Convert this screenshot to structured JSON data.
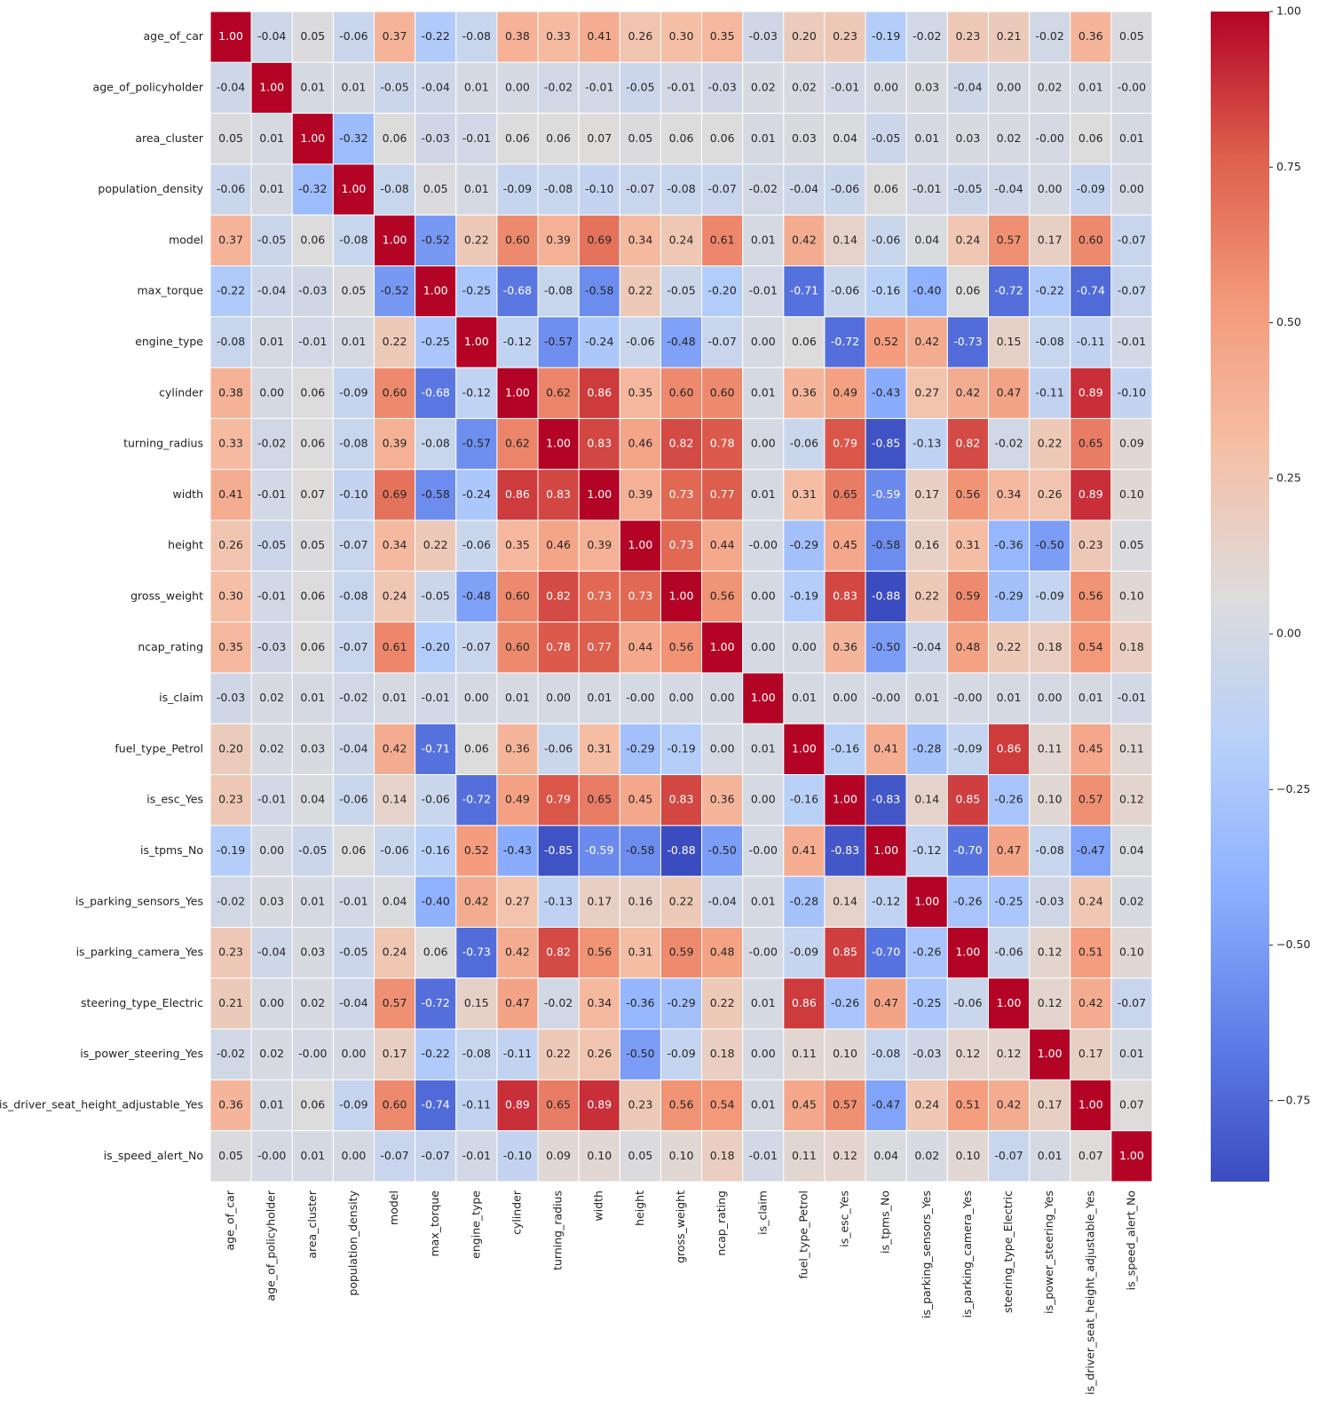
{
  "chart_data": {
    "type": "heatmap",
    "categories": [
      "age_of_car",
      "age_of_policyholder",
      "area_cluster",
      "population_density",
      "model",
      "max_torque",
      "engine_type",
      "cylinder",
      "turning_radius",
      "width",
      "height",
      "gross_weight",
      "ncap_rating",
      "is_claim",
      "fuel_type_Petrol",
      "is_esc_Yes",
      "is_tpms_No",
      "is_parking_sensors_Yes",
      "is_parking_camera_Yes",
      "steering_type_Electric",
      "is_power_steering_Yes",
      "is_driver_seat_height_adjustable_Yes",
      "is_speed_alert_No"
    ],
    "values": [
      [
        1.0,
        -0.04,
        0.05,
        -0.06,
        0.37,
        -0.22,
        -0.08,
        0.38,
        0.33,
        0.41,
        0.26,
        0.3,
        0.35,
        -0.03,
        0.2,
        0.23,
        -0.19,
        -0.02,
        0.23,
        0.21,
        -0.02,
        0.36,
        0.05
      ],
      [
        -0.04,
        1.0,
        0.01,
        0.01,
        -0.05,
        -0.04,
        0.01,
        0.0,
        -0.02,
        -0.01,
        -0.05,
        -0.01,
        -0.03,
        0.02,
        0.02,
        -0.01,
        0.0,
        0.03,
        -0.04,
        0.0,
        0.02,
        0.01,
        -0.0
      ],
      [
        0.05,
        0.01,
        1.0,
        -0.32,
        0.06,
        -0.03,
        -0.01,
        0.06,
        0.06,
        0.07,
        0.05,
        0.06,
        0.06,
        0.01,
        0.03,
        0.04,
        -0.05,
        0.01,
        0.03,
        0.02,
        -0.0,
        0.06,
        0.01
      ],
      [
        -0.06,
        0.01,
        -0.32,
        1.0,
        -0.08,
        0.05,
        0.01,
        -0.09,
        -0.08,
        -0.1,
        -0.07,
        -0.08,
        -0.07,
        -0.02,
        -0.04,
        -0.06,
        0.06,
        -0.01,
        -0.05,
        -0.04,
        0.0,
        -0.09,
        0.0
      ],
      [
        0.37,
        -0.05,
        0.06,
        -0.08,
        1.0,
        -0.52,
        0.22,
        0.6,
        0.39,
        0.69,
        0.34,
        0.24,
        0.61,
        0.01,
        0.42,
        0.14,
        -0.06,
        0.04,
        0.24,
        0.57,
        0.17,
        0.6,
        -0.07
      ],
      [
        -0.22,
        -0.04,
        -0.03,
        0.05,
        -0.52,
        1.0,
        -0.25,
        -0.68,
        -0.08,
        -0.58,
        0.22,
        -0.05,
        -0.2,
        -0.01,
        -0.71,
        -0.06,
        -0.16,
        -0.4,
        0.06,
        -0.72,
        -0.22,
        -0.74,
        -0.07
      ],
      [
        -0.08,
        0.01,
        -0.01,
        0.01,
        0.22,
        -0.25,
        1.0,
        -0.12,
        -0.57,
        -0.24,
        -0.06,
        -0.48,
        -0.07,
        0.0,
        0.06,
        -0.72,
        0.52,
        0.42,
        -0.73,
        0.15,
        -0.08,
        -0.11,
        -0.01
      ],
      [
        0.38,
        0.0,
        0.06,
        -0.09,
        0.6,
        -0.68,
        -0.12,
        1.0,
        0.62,
        0.86,
        0.35,
        0.6,
        0.6,
        0.01,
        0.36,
        0.49,
        -0.43,
        0.27,
        0.42,
        0.47,
        -0.11,
        0.89,
        -0.1
      ],
      [
        0.33,
        -0.02,
        0.06,
        -0.08,
        0.39,
        -0.08,
        -0.57,
        0.62,
        1.0,
        0.83,
        0.46,
        0.82,
        0.78,
        0.0,
        -0.06,
        0.79,
        -0.85,
        -0.13,
        0.82,
        -0.02,
        0.22,
        0.65,
        0.09
      ],
      [
        0.41,
        -0.01,
        0.07,
        -0.1,
        0.69,
        -0.58,
        -0.24,
        0.86,
        0.83,
        1.0,
        0.39,
        0.73,
        0.77,
        0.01,
        0.31,
        0.65,
        -0.59,
        0.17,
        0.56,
        0.34,
        0.26,
        0.89,
        0.1
      ],
      [
        0.26,
        -0.05,
        0.05,
        -0.07,
        0.34,
        0.22,
        -0.06,
        0.35,
        0.46,
        0.39,
        1.0,
        0.73,
        0.44,
        -0.0,
        -0.29,
        0.45,
        -0.58,
        0.16,
        0.31,
        -0.36,
        -0.5,
        0.23,
        0.05
      ],
      [
        0.3,
        -0.01,
        0.06,
        -0.08,
        0.24,
        -0.05,
        -0.48,
        0.6,
        0.82,
        0.73,
        0.73,
        1.0,
        0.56,
        0.0,
        -0.19,
        0.83,
        -0.88,
        0.22,
        0.59,
        -0.29,
        -0.09,
        0.56,
        0.1
      ],
      [
        0.35,
        -0.03,
        0.06,
        -0.07,
        0.61,
        -0.2,
        -0.07,
        0.6,
        0.78,
        0.77,
        0.44,
        0.56,
        1.0,
        0.0,
        0.0,
        0.36,
        -0.5,
        -0.04,
        0.48,
        0.22,
        0.18,
        0.54,
        0.18
      ],
      [
        -0.03,
        0.02,
        0.01,
        -0.02,
        0.01,
        -0.01,
        0.0,
        0.01,
        0.0,
        0.01,
        -0.0,
        0.0,
        0.0,
        1.0,
        0.01,
        0.0,
        -0.0,
        0.01,
        -0.0,
        0.01,
        0.0,
        0.01,
        -0.01
      ],
      [
        0.2,
        0.02,
        0.03,
        -0.04,
        0.42,
        -0.71,
        0.06,
        0.36,
        -0.06,
        0.31,
        -0.29,
        -0.19,
        0.0,
        0.01,
        1.0,
        -0.16,
        0.41,
        -0.28,
        -0.09,
        0.86,
        0.11,
        0.45,
        0.11
      ],
      [
        0.23,
        -0.01,
        0.04,
        -0.06,
        0.14,
        -0.06,
        -0.72,
        0.49,
        0.79,
        0.65,
        0.45,
        0.83,
        0.36,
        0.0,
        -0.16,
        1.0,
        -0.83,
        0.14,
        0.85,
        -0.26,
        0.1,
        0.57,
        0.12
      ],
      [
        -0.19,
        0.0,
        -0.05,
        0.06,
        -0.06,
        -0.16,
        0.52,
        -0.43,
        -0.85,
        -0.59,
        -0.58,
        -0.88,
        -0.5,
        -0.0,
        0.41,
        -0.83,
        1.0,
        -0.12,
        -0.7,
        0.47,
        -0.08,
        -0.47,
        0.04
      ],
      [
        -0.02,
        0.03,
        0.01,
        -0.01,
        0.04,
        -0.4,
        0.42,
        0.27,
        -0.13,
        0.17,
        0.16,
        0.22,
        -0.04,
        0.01,
        -0.28,
        0.14,
        -0.12,
        1.0,
        -0.26,
        -0.25,
        -0.03,
        0.24,
        0.02
      ],
      [
        0.23,
        -0.04,
        0.03,
        -0.05,
        0.24,
        0.06,
        -0.73,
        0.42,
        0.82,
        0.56,
        0.31,
        0.59,
        0.48,
        -0.0,
        -0.09,
        0.85,
        -0.7,
        -0.26,
        1.0,
        -0.06,
        0.12,
        0.51,
        0.1
      ],
      [
        0.21,
        0.0,
        0.02,
        -0.04,
        0.57,
        -0.72,
        0.15,
        0.47,
        -0.02,
        0.34,
        -0.36,
        -0.29,
        0.22,
        0.01,
        0.86,
        -0.26,
        0.47,
        -0.25,
        -0.06,
        1.0,
        0.12,
        0.42,
        -0.07
      ],
      [
        -0.02,
        0.02,
        -0.0,
        0.0,
        0.17,
        -0.22,
        -0.08,
        -0.11,
        0.22,
        0.26,
        -0.5,
        -0.09,
        0.18,
        0.0,
        0.11,
        0.1,
        -0.08,
        -0.03,
        0.12,
        0.12,
        1.0,
        0.17,
        0.01
      ],
      [
        0.36,
        0.01,
        0.06,
        -0.09,
        0.6,
        -0.74,
        -0.11,
        0.89,
        0.65,
        0.89,
        0.23,
        0.56,
        0.54,
        0.01,
        0.45,
        0.57,
        -0.47,
        0.24,
        0.51,
        0.42,
        0.17,
        1.0,
        0.07
      ],
      [
        0.05,
        -0.0,
        0.01,
        0.0,
        -0.07,
        -0.07,
        -0.01,
        -0.1,
        0.09,
        0.1,
        0.05,
        0.1,
        0.18,
        -0.01,
        0.11,
        0.12,
        0.04,
        0.02,
        0.1,
        -0.07,
        0.01,
        0.07,
        1.0
      ]
    ],
    "value_labels": [
      [
        "1.00",
        "-0.04",
        "0.05",
        "-0.06",
        "0.37",
        "-0.22",
        "-0.08",
        "0.38",
        "0.33",
        "0.41",
        "0.26",
        "0.30",
        "0.35",
        "-0.03",
        "0.20",
        "0.23",
        "-0.19",
        "-0.02",
        "0.23",
        "0.21",
        "-0.02",
        "0.36",
        "0.05"
      ],
      [
        "-0.04",
        "1.00",
        "0.01",
        "0.01",
        "-0.05",
        "-0.04",
        "0.01",
        "0.00",
        "-0.02",
        "-0.01",
        "-0.05",
        "-0.01",
        "-0.03",
        "0.02",
        "0.02",
        "-0.01",
        "0.00",
        "0.03",
        "-0.04",
        "0.00",
        "0.02",
        "0.01",
        "-0.00"
      ],
      [
        "0.05",
        "0.01",
        "1.00",
        "-0.32",
        "0.06",
        "-0.03",
        "-0.01",
        "0.06",
        "0.06",
        "0.07",
        "0.05",
        "0.06",
        "0.06",
        "0.01",
        "0.03",
        "0.04",
        "-0.05",
        "0.01",
        "0.03",
        "0.02",
        "-0.00",
        "0.06",
        "0.01"
      ],
      [
        "-0.06",
        "0.01",
        "-0.32",
        "1.00",
        "-0.08",
        "0.05",
        "0.01",
        "-0.09",
        "-0.08",
        "-0.10",
        "-0.07",
        "-0.08",
        "-0.07",
        "-0.02",
        "-0.04",
        "-0.06",
        "0.06",
        "-0.01",
        "-0.05",
        "-0.04",
        "0.00",
        "-0.09",
        "0.00"
      ],
      [
        "0.37",
        "-0.05",
        "0.06",
        "-0.08",
        "1.00",
        "-0.52",
        "0.22",
        "0.60",
        "0.39",
        "0.69",
        "0.34",
        "0.24",
        "0.61",
        "0.01",
        "0.42",
        "0.14",
        "-0.06",
        "0.04",
        "0.24",
        "0.57",
        "0.17",
        "0.60",
        "-0.07"
      ],
      [
        "-0.22",
        "-0.04",
        "-0.03",
        "0.05",
        "-0.52",
        "1.00",
        "-0.25",
        "-0.68",
        "-0.08",
        "-0.58",
        "0.22",
        "-0.05",
        "-0.20",
        "-0.01",
        "-0.71",
        "-0.06",
        "-0.16",
        "-0.40",
        "0.06",
        "-0.72",
        "-0.22",
        "-0.74",
        "-0.07"
      ],
      [
        "-0.08",
        "0.01",
        "-0.01",
        "0.01",
        "0.22",
        "-0.25",
        "1.00",
        "-0.12",
        "-0.57",
        "-0.24",
        "-0.06",
        "-0.48",
        "-0.07",
        "0.00",
        "0.06",
        "-0.72",
        "0.52",
        "0.42",
        "-0.73",
        "0.15",
        "-0.08",
        "-0.11",
        "-0.01"
      ],
      [
        "0.38",
        "0.00",
        "0.06",
        "-0.09",
        "0.60",
        "-0.68",
        "-0.12",
        "1.00",
        "0.62",
        "0.86",
        "0.35",
        "0.60",
        "0.60",
        "0.01",
        "0.36",
        "0.49",
        "-0.43",
        "0.27",
        "0.42",
        "0.47",
        "-0.11",
        "0.89",
        "-0.10"
      ],
      [
        "0.33",
        "-0.02",
        "0.06",
        "-0.08",
        "0.39",
        "-0.08",
        "-0.57",
        "0.62",
        "1.00",
        "0.83",
        "0.46",
        "0.82",
        "0.78",
        "0.00",
        "-0.06",
        "0.79",
        "-0.85",
        "-0.13",
        "0.82",
        "-0.02",
        "0.22",
        "0.65",
        "0.09"
      ],
      [
        "0.41",
        "-0.01",
        "0.07",
        "-0.10",
        "0.69",
        "-0.58",
        "-0.24",
        "0.86",
        "0.83",
        "1.00",
        "0.39",
        "0.73",
        "0.77",
        "0.01",
        "0.31",
        "0.65",
        "-0.59",
        "0.17",
        "0.56",
        "0.34",
        "0.26",
        "0.89",
        "0.10"
      ],
      [
        "0.26",
        "-0.05",
        "0.05",
        "-0.07",
        "0.34",
        "0.22",
        "-0.06",
        "0.35",
        "0.46",
        "0.39",
        "1.00",
        "0.73",
        "0.44",
        "-0.00",
        "-0.29",
        "0.45",
        "-0.58",
        "0.16",
        "0.31",
        "-0.36",
        "-0.50",
        "0.23",
        "0.05"
      ],
      [
        "0.30",
        "-0.01",
        "0.06",
        "-0.08",
        "0.24",
        "-0.05",
        "-0.48",
        "0.60",
        "0.82",
        "0.73",
        "0.73",
        "1.00",
        "0.56",
        "0.00",
        "-0.19",
        "0.83",
        "-0.88",
        "0.22",
        "0.59",
        "-0.29",
        "-0.09",
        "0.56",
        "0.10"
      ],
      [
        "0.35",
        "-0.03",
        "0.06",
        "-0.07",
        "0.61",
        "-0.20",
        "-0.07",
        "0.60",
        "0.78",
        "0.77",
        "0.44",
        "0.56",
        "1.00",
        "0.00",
        "0.00",
        "0.36",
        "-0.50",
        "-0.04",
        "0.48",
        "0.22",
        "0.18",
        "0.54",
        "0.18"
      ],
      [
        "-0.03",
        "0.02",
        "0.01",
        "-0.02",
        "0.01",
        "-0.01",
        "0.00",
        "0.01",
        "0.00",
        "0.01",
        "-0.00",
        "0.00",
        "0.00",
        "1.00",
        "0.01",
        "0.00",
        "-0.00",
        "0.01",
        "-0.00",
        "0.01",
        "0.00",
        "0.01",
        "-0.01"
      ],
      [
        "0.20",
        "0.02",
        "0.03",
        "-0.04",
        "0.42",
        "-0.71",
        "0.06",
        "0.36",
        "-0.06",
        "0.31",
        "-0.29",
        "-0.19",
        "0.00",
        "0.01",
        "1.00",
        "-0.16",
        "0.41",
        "-0.28",
        "-0.09",
        "0.86",
        "0.11",
        "0.45",
        "0.11"
      ],
      [
        "0.23",
        "-0.01",
        "0.04",
        "-0.06",
        "0.14",
        "-0.06",
        "-0.72",
        "0.49",
        "0.79",
        "0.65",
        "0.45",
        "0.83",
        "0.36",
        "0.00",
        "-0.16",
        "1.00",
        "-0.83",
        "0.14",
        "0.85",
        "-0.26",
        "0.10",
        "0.57",
        "0.12"
      ],
      [
        "-0.19",
        "0.00",
        "-0.05",
        "0.06",
        "-0.06",
        "-0.16",
        "0.52",
        "-0.43",
        "-0.85",
        "-0.59",
        "-0.58",
        "-0.88",
        "-0.50",
        "-0.00",
        "0.41",
        "-0.83",
        "1.00",
        "-0.12",
        "-0.70",
        "0.47",
        "-0.08",
        "-0.47",
        "0.04"
      ],
      [
        "-0.02",
        "0.03",
        "0.01",
        "-0.01",
        "0.04",
        "-0.40",
        "0.42",
        "0.27",
        "-0.13",
        "0.17",
        "0.16",
        "0.22",
        "-0.04",
        "0.01",
        "-0.28",
        "0.14",
        "-0.12",
        "1.00",
        "-0.26",
        "-0.25",
        "-0.03",
        "0.24",
        "0.02"
      ],
      [
        "0.23",
        "-0.04",
        "0.03",
        "-0.05",
        "0.24",
        "0.06",
        "-0.73",
        "0.42",
        "0.82",
        "0.56",
        "0.31",
        "0.59",
        "0.48",
        "-0.00",
        "-0.09",
        "0.85",
        "-0.70",
        "-0.26",
        "1.00",
        "-0.06",
        "0.12",
        "0.51",
        "0.10"
      ],
      [
        "0.21",
        "0.00",
        "0.02",
        "-0.04",
        "0.57",
        "-0.72",
        "0.15",
        "0.47",
        "-0.02",
        "0.34",
        "-0.36",
        "-0.29",
        "0.22",
        "0.01",
        "0.86",
        "-0.26",
        "0.47",
        "-0.25",
        "-0.06",
        "1.00",
        "0.12",
        "0.42",
        "-0.07"
      ],
      [
        "-0.02",
        "0.02",
        "-0.00",
        "0.00",
        "0.17",
        "-0.22",
        "-0.08",
        "-0.11",
        "0.22",
        "0.26",
        "-0.50",
        "-0.09",
        "0.18",
        "0.00",
        "0.11",
        "0.10",
        "-0.08",
        "-0.03",
        "0.12",
        "0.12",
        "1.00",
        "0.17",
        "0.01"
      ],
      [
        "0.36",
        "0.01",
        "0.06",
        "-0.09",
        "0.60",
        "-0.74",
        "-0.11",
        "0.89",
        "0.65",
        "0.89",
        "0.23",
        "0.56",
        "0.54",
        "0.01",
        "0.45",
        "0.57",
        "-0.47",
        "0.24",
        "0.51",
        "0.42",
        "0.17",
        "1.00",
        "0.07"
      ],
      [
        "0.05",
        "-0.00",
        "0.01",
        "0.00",
        "-0.07",
        "-0.07",
        "-0.01",
        "-0.10",
        "0.09",
        "0.10",
        "0.05",
        "0.10",
        "0.18",
        "-0.01",
        "0.11",
        "0.12",
        "0.04",
        "0.02",
        "0.10",
        "-0.07",
        "0.01",
        "0.07",
        "1.00"
      ]
    ],
    "colormap": [
      "#3b4cc0",
      "#5f7fe8",
      "#8db0fe",
      "#b8d0f9",
      "#dddcdc",
      "#f5c0a7",
      "#f49a7b",
      "#de604d",
      "#b40426"
    ],
    "clim": [
      -0.88,
      1.0
    ],
    "cticks": [
      {
        "value": -0.75,
        "label": "−0.75"
      },
      {
        "value": -0.5,
        "label": "−0.50"
      },
      {
        "value": -0.25,
        "label": "−0.25"
      },
      {
        "value": 0,
        "label": "0.00"
      },
      {
        "value": 0.25,
        "label": "0.25"
      },
      {
        "value": 0.5,
        "label": "0.50"
      },
      {
        "value": 0.75,
        "label": "0.75"
      },
      {
        "value": 1.0,
        "label": "1.00"
      }
    ]
  }
}
